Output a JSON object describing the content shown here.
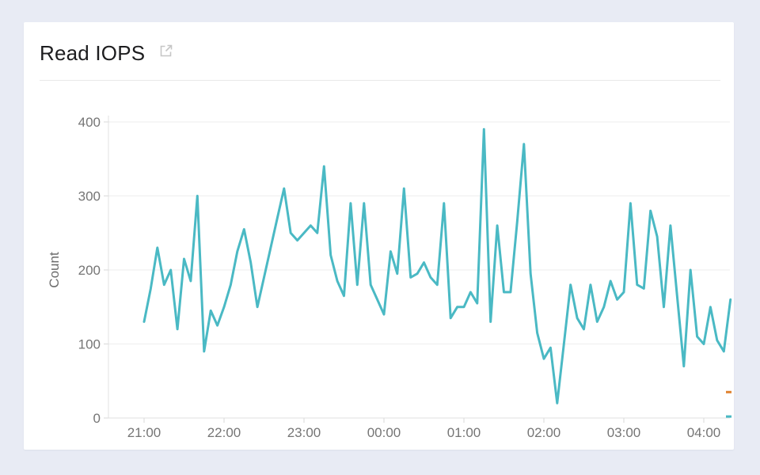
{
  "card": {
    "title": "Read IOPS",
    "external_link_icon": "external-link-icon"
  },
  "colors": {
    "line": "#4ab9c4",
    "orange_marker": "#e0822f",
    "grid": "#eeeeee",
    "axis": "#e0e0e0",
    "tick_stub": "#d9d9d9",
    "tick_text": "#757575",
    "axis_label_text": "#6b6b6b",
    "title_text": "#1d1d1f",
    "card_bg": "#ffffff",
    "page_bg": "#e8ebf4",
    "icon": "#c6c6c6"
  },
  "chart_data": {
    "type": "line",
    "title": "Read IOPS",
    "xlabel": "",
    "ylabel": "Count",
    "ylim": [
      0,
      400
    ],
    "y_ticks": [
      0,
      100,
      200,
      300,
      400
    ],
    "x_ticks": [
      "21:00",
      "22:00",
      "23:00",
      "00:00",
      "01:00",
      "02:00",
      "03:00",
      "04:00"
    ],
    "grid": "horizontal",
    "legend_position": "none",
    "series": [
      {
        "name": "Read IOPS",
        "color": "#4ab9c4",
        "x": [
          "21:00",
          "21:05",
          "21:10",
          "21:15",
          "21:20",
          "21:25",
          "21:30",
          "21:35",
          "21:40",
          "21:45",
          "21:50",
          "21:55",
          "22:00",
          "22:05",
          "22:10",
          "22:15",
          "22:20",
          "22:25",
          "22:30",
          "22:35",
          "22:40",
          "22:45",
          "22:50",
          "22:55",
          "23:00",
          "23:05",
          "23:10",
          "23:15",
          "23:20",
          "23:25",
          "23:30",
          "23:35",
          "23:40",
          "23:45",
          "23:50",
          "23:55",
          "00:00",
          "00:05",
          "00:10",
          "00:15",
          "00:20",
          "00:25",
          "00:30",
          "00:35",
          "00:40",
          "00:45",
          "00:50",
          "00:55",
          "01:00",
          "01:05",
          "01:10",
          "01:15",
          "01:20",
          "01:25",
          "01:30",
          "01:35",
          "01:40",
          "01:45",
          "01:50",
          "01:55",
          "02:00",
          "02:05",
          "02:10",
          "02:15",
          "02:20",
          "02:25",
          "02:30",
          "02:35",
          "02:40",
          "02:45",
          "02:50",
          "02:55",
          "03:00",
          "03:05",
          "03:10",
          "03:15",
          "03:20",
          "03:25",
          "03:30",
          "03:35",
          "03:40",
          "03:45",
          "03:50",
          "03:55",
          "04:00",
          "04:05",
          "04:10",
          "04:15",
          "04:20"
        ],
        "values": [
          130,
          175,
          230,
          180,
          200,
          120,
          215,
          185,
          300,
          90,
          145,
          125,
          150,
          180,
          225,
          255,
          210,
          150,
          190,
          230,
          270,
          310,
          250,
          240,
          250,
          260,
          250,
          340,
          220,
          185,
          165,
          290,
          180,
          290,
          180,
          160,
          140,
          225,
          195,
          310,
          190,
          195,
          210,
          190,
          180,
          290,
          135,
          150,
          150,
          170,
          155,
          390,
          130,
          260,
          170,
          170,
          265,
          370,
          195,
          115,
          80,
          95,
          20,
          100,
          180,
          135,
          120,
          180,
          130,
          150,
          185,
          160,
          170,
          290,
          180,
          175,
          280,
          245,
          150,
          260,
          165,
          70,
          200,
          110,
          100,
          150,
          105,
          90,
          160
        ]
      }
    ],
    "edge_markers": [
      {
        "name": "partial-next-point-teal",
        "color": "#4ab9c4",
        "value": 2
      },
      {
        "name": "partial-next-point-orange",
        "color": "#e0822f",
        "value": 35
      }
    ]
  }
}
